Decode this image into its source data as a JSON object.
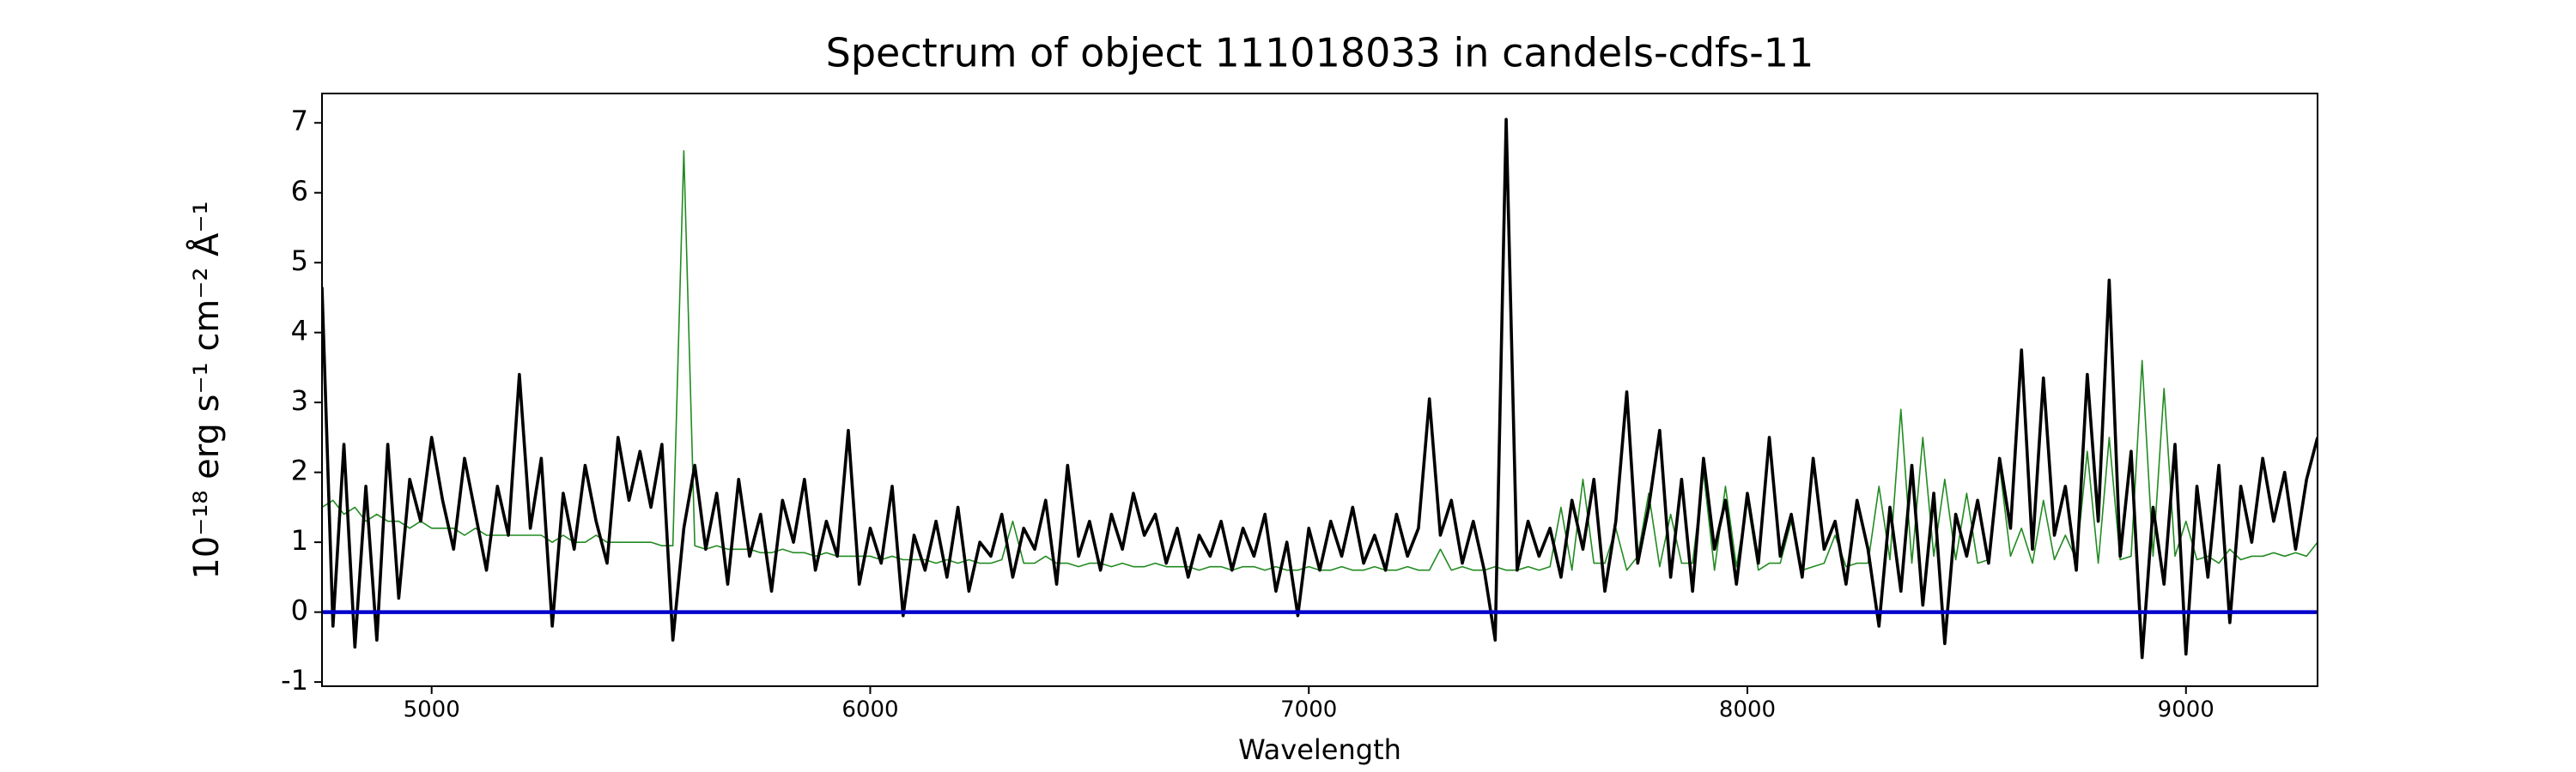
{
  "chart_data": {
    "type": "line",
    "title": "Spectrum of object 111018033 in candels-cdfs-11",
    "x_label": "Wavelength",
    "y_label": "10⁻¹⁸ erg s⁻¹ cm⁻² Å⁻¹",
    "xlim": [
      4750,
      9300
    ],
    "ylim": [
      -1.06,
      7.42
    ],
    "xticks": [
      5000,
      6000,
      7000,
      8000,
      9000
    ],
    "yticks": [
      -1,
      0,
      1,
      2,
      3,
      4,
      5,
      6,
      7
    ],
    "reference_line": {
      "value": 0,
      "color": "#0000cc"
    },
    "x": [
      4750,
      4775,
      4800,
      4825,
      4850,
      4875,
      4900,
      4925,
      4950,
      4975,
      5000,
      5025,
      5050,
      5075,
      5100,
      5125,
      5150,
      5175,
      5200,
      5225,
      5250,
      5275,
      5300,
      5325,
      5350,
      5375,
      5400,
      5425,
      5450,
      5475,
      5500,
      5525,
      5550,
      5575,
      5600,
      5625,
      5650,
      5675,
      5700,
      5725,
      5750,
      5775,
      5800,
      5825,
      5850,
      5875,
      5900,
      5925,
      5950,
      5975,
      6000,
      6025,
      6050,
      6075,
      6100,
      6125,
      6150,
      6175,
      6200,
      6225,
      6250,
      6275,
      6300,
      6325,
      6350,
      6375,
      6400,
      6425,
      6450,
      6475,
      6500,
      6525,
      6550,
      6575,
      6600,
      6625,
      6650,
      6675,
      6700,
      6725,
      6750,
      6775,
      6800,
      6825,
      6850,
      6875,
      6900,
      6925,
      6950,
      6975,
      7000,
      7025,
      7050,
      7075,
      7100,
      7125,
      7150,
      7175,
      7200,
      7225,
      7250,
      7275,
      7300,
      7325,
      7350,
      7375,
      7400,
      7425,
      7450,
      7475,
      7500,
      7525,
      7550,
      7575,
      7600,
      7625,
      7650,
      7675,
      7700,
      7725,
      7750,
      7775,
      7800,
      7825,
      7850,
      7875,
      7900,
      7925,
      7950,
      7975,
      8000,
      8025,
      8050,
      8075,
      8100,
      8125,
      8150,
      8175,
      8200,
      8225,
      8250,
      8275,
      8300,
      8325,
      8350,
      8375,
      8400,
      8425,
      8450,
      8475,
      8500,
      8525,
      8550,
      8575,
      8600,
      8625,
      8650,
      8675,
      8700,
      8725,
      8750,
      8775,
      8800,
      8825,
      8850,
      8875,
      8900,
      8925,
      8950,
      8975,
      9000,
      9025,
      9050,
      9075,
      9100,
      9125,
      9150,
      9175,
      9200,
      9225,
      9250,
      9275,
      9300
    ],
    "series": [
      {
        "color": "#228b22",
        "width": 1.6,
        "values": [
          1.5,
          1.6,
          1.4,
          1.5,
          1.3,
          1.4,
          1.3,
          1.3,
          1.2,
          1.3,
          1.2,
          1.2,
          1.2,
          1.1,
          1.2,
          1.1,
          1.1,
          1.1,
          1.1,
          1.1,
          1.1,
          1.0,
          1.1,
          1.0,
          1.0,
          1.1,
          1.0,
          1.0,
          1.0,
          1.0,
          1.0,
          0.95,
          0.95,
          6.6,
          0.95,
          0.9,
          0.95,
          0.9,
          0.9,
          0.9,
          0.85,
          0.85,
          0.9,
          0.85,
          0.85,
          0.8,
          0.85,
          0.8,
          0.8,
          0.8,
          0.8,
          0.75,
          0.8,
          0.75,
          0.75,
          0.75,
          0.7,
          0.75,
          0.7,
          0.75,
          0.7,
          0.7,
          0.75,
          1.3,
          0.7,
          0.7,
          0.8,
          0.7,
          0.7,
          0.65,
          0.7,
          0.7,
          0.65,
          0.7,
          0.65,
          0.65,
          0.7,
          0.65,
          0.65,
          0.65,
          0.6,
          0.65,
          0.65,
          0.6,
          0.65,
          0.65,
          0.6,
          0.65,
          0.6,
          0.6,
          0.65,
          0.6,
          0.6,
          0.65,
          0.6,
          0.6,
          0.65,
          0.6,
          0.6,
          0.65,
          0.6,
          0.6,
          0.9,
          0.6,
          0.65,
          0.6,
          0.6,
          0.65,
          0.6,
          0.6,
          0.65,
          0.6,
          0.65,
          1.5,
          0.6,
          1.9,
          0.7,
          0.7,
          1.2,
          0.6,
          0.8,
          1.7,
          0.65,
          1.4,
          0.7,
          0.7,
          2.0,
          0.6,
          1.8,
          0.65,
          1.6,
          0.6,
          0.7,
          0.7,
          1.3,
          0.6,
          0.65,
          0.7,
          1.1,
          0.65,
          0.7,
          0.7,
          1.8,
          0.75,
          2.9,
          0.7,
          2.5,
          0.8,
          1.9,
          0.75,
          1.7,
          0.7,
          0.75,
          2.1,
          0.8,
          1.2,
          0.7,
          1.6,
          0.75,
          1.1,
          0.75,
          2.3,
          0.7,
          2.5,
          0.75,
          0.8,
          3.6,
          0.8,
          3.2,
          0.8,
          1.3,
          0.75,
          0.8,
          0.7,
          0.9,
          0.75,
          0.8,
          0.8,
          0.85,
          0.8,
          0.85,
          0.8,
          1.0
        ]
      },
      {
        "color": "#000000",
        "width": 3.6,
        "values": [
          4.65,
          -0.2,
          2.4,
          -0.5,
          1.8,
          -0.4,
          2.4,
          0.2,
          1.9,
          1.3,
          2.5,
          1.6,
          0.9,
          2.2,
          1.4,
          0.6,
          1.8,
          1.1,
          3.4,
          1.2,
          2.2,
          -0.2,
          1.7,
          0.9,
          2.1,
          1.3,
          0.7,
          2.5,
          1.6,
          2.3,
          1.5,
          2.4,
          -0.4,
          1.2,
          2.1,
          0.9,
          1.7,
          0.4,
          1.9,
          0.8,
          1.4,
          0.3,
          1.6,
          1.0,
          1.9,
          0.6,
          1.3,
          0.8,
          2.6,
          0.4,
          1.2,
          0.7,
          1.8,
          -0.05,
          1.1,
          0.6,
          1.3,
          0.5,
          1.5,
          0.3,
          1.0,
          0.8,
          1.4,
          0.5,
          1.2,
          0.9,
          1.6,
          0.4,
          2.1,
          0.8,
          1.3,
          0.6,
          1.4,
          0.9,
          1.7,
          1.1,
          1.4,
          0.7,
          1.2,
          0.5,
          1.1,
          0.8,
          1.3,
          0.6,
          1.2,
          0.8,
          1.4,
          0.3,
          1.0,
          -0.05,
          1.2,
          0.6,
          1.3,
          0.8,
          1.5,
          0.7,
          1.1,
          0.6,
          1.4,
          0.8,
          1.2,
          3.05,
          1.1,
          1.6,
          0.7,
          1.3,
          0.6,
          -0.4,
          7.05,
          0.6,
          1.3,
          0.8,
          1.2,
          0.5,
          1.6,
          0.9,
          1.9,
          0.3,
          1.3,
          3.15,
          0.7,
          1.5,
          2.6,
          0.5,
          1.9,
          0.3,
          2.2,
          0.9,
          1.6,
          0.4,
          1.7,
          0.7,
          2.5,
          0.8,
          1.4,
          0.5,
          2.2,
          0.9,
          1.3,
          0.4,
          1.6,
          0.9,
          -0.2,
          1.5,
          0.3,
          2.1,
          0.1,
          1.7,
          -0.45,
          1.4,
          0.8,
          1.6,
          0.7,
          2.2,
          1.2,
          3.75,
          0.9,
          3.35,
          1.1,
          1.8,
          0.6,
          3.4,
          1.3,
          4.75,
          0.8,
          2.3,
          -0.65,
          1.5,
          0.4,
          2.4,
          -0.6,
          1.8,
          0.5,
          2.1,
          -0.15,
          1.8,
          1.0,
          2.2,
          1.3,
          2.0,
          0.9,
          1.9,
          2.5
        ]
      }
    ]
  }
}
